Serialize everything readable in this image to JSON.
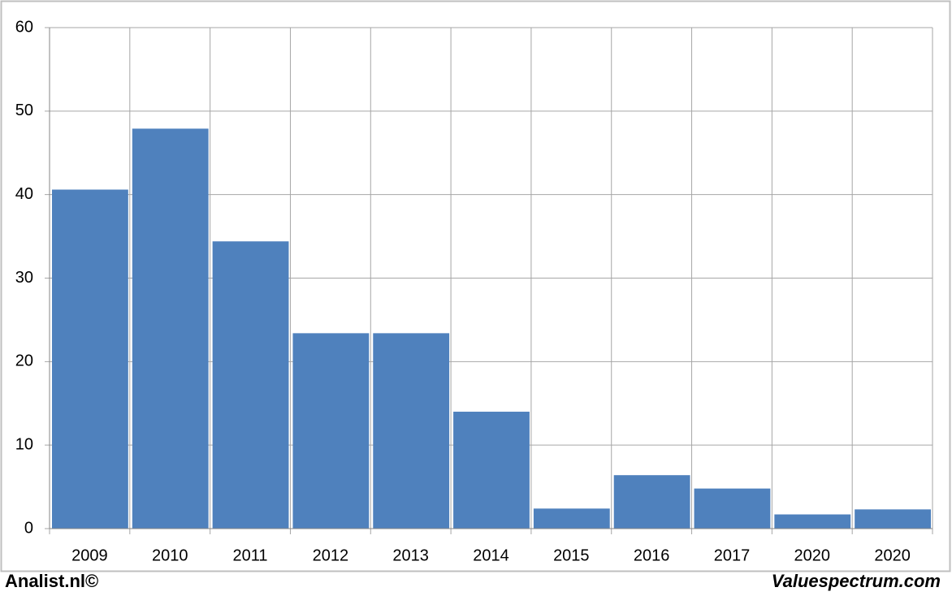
{
  "chart_data": {
    "type": "bar",
    "categories": [
      "2009",
      "2010",
      "2011",
      "2012",
      "2013",
      "2014",
      "2015",
      "2016",
      "2017",
      "2020",
      "2020"
    ],
    "values": [
      40.6,
      47.9,
      34.4,
      23.4,
      23.4,
      14.0,
      2.4,
      6.4,
      4.8,
      1.7,
      2.3
    ],
    "color": "#4f81bd",
    "ylim": [
      0,
      60
    ],
    "yticks": [
      0,
      10,
      20,
      30,
      40,
      50,
      60
    ],
    "grid": true
  },
  "footer": {
    "left": "Analist.nl©",
    "right": "Valuespectrum.com"
  }
}
